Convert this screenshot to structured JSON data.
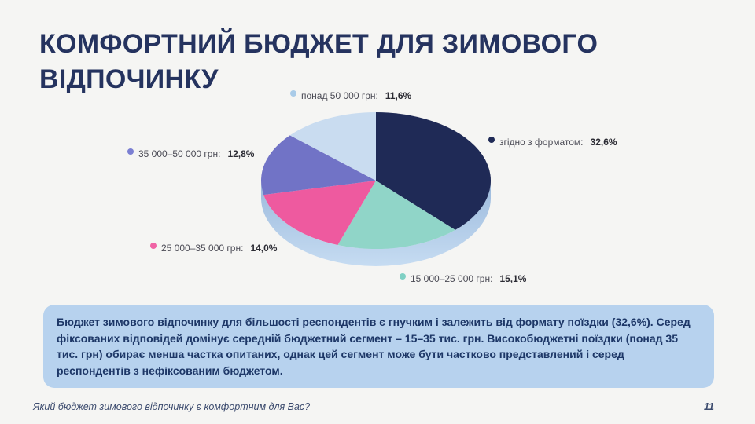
{
  "slide": {
    "background_color": "#f5f5f3",
    "title": "КОМФОРТНИЙ БЮДЖЕТ ДЛЯ ЗИМОВОГО ВІДПОЧИНКУ",
    "title_color": "#25335f",
    "footer": {
      "question": "Який бюджет зимового відпочинку є комфортним для Вас?",
      "page_number": "11"
    }
  },
  "insight": {
    "text": "Бюджет зимового відпочинку для більшості респондентів є гнучким і залежить від формату поїздки (32,6%). Серед фіксованих відповідей домінує середній бюджетний сегмент – 15–35 тис. грн. Високобюджетні поїздки (понад 35 тис. грн) обирає менша частка опитаних, однак цей сегмент може бути частково представлений і серед респондентів з нефіксованим бюджетом.",
    "background_color": "#b7d2ee",
    "text_color": "#1d3767"
  },
  "chart_data": {
    "type": "pie",
    "style": "3d-ellipse",
    "title": "",
    "unit": "%",
    "legend_position": "around",
    "start_angle_deg": 0,
    "clockwise": true,
    "slices": [
      {
        "label": "згідно з форматом",
        "legend_label": "згідно з форматом:",
        "value": 32.6,
        "value_label": "32,6%",
        "color": "#1f2a56",
        "dot_color": "#1f2a56"
      },
      {
        "label": "15 000–25 000 грн",
        "legend_label": "15 000–25 000 грн:",
        "value": 15.1,
        "value_label": "15,1%",
        "color": "#90d5c8",
        "dot_color": "#7fd0c4"
      },
      {
        "label": "25 000–35 000 грн",
        "legend_label": "25 000–35 000 грн:",
        "value": 14.0,
        "value_label": "14,0%",
        "color": "#ee5a9f",
        "dot_color": "#f064a5"
      },
      {
        "label": "35 000–50 000 грн",
        "legend_label": "35 000–50 000 грн:",
        "value": 12.8,
        "value_label": "12,8%",
        "color": "#7173c6",
        "dot_color": "#7b7fd2"
      },
      {
        "label": "понад 50 000 грн",
        "legend_label": "понад 50 000 грн:",
        "value": 11.6,
        "value_label": "11,6%",
        "color": "#c9dcf0",
        "dot_color": "#a9cbe8"
      }
    ],
    "depth_gradient": [
      "#9bb9dc",
      "#c6dcf2"
    ]
  }
}
